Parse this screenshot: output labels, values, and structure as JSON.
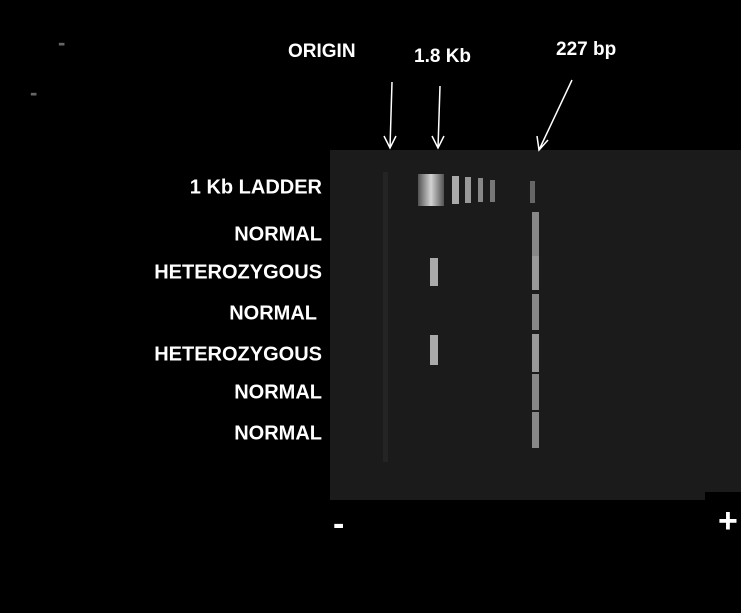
{
  "labels": {
    "origin": "ORIGIN",
    "band_high": "1.8 Kb",
    "band_low": "227 bp"
  },
  "lanes": [
    "1 Kb LADDER",
    "NORMAL",
    "HETEROZYGOUS",
    "NORMAL",
    "HETEROZYGOUS",
    "NORMAL",
    "NORMAL"
  ],
  "polarity": {
    "negative": "-",
    "positive": "+"
  },
  "corner_marks": [
    "-",
    "-"
  ]
}
